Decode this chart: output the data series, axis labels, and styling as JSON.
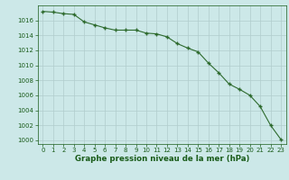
{
  "x": [
    0,
    1,
    2,
    3,
    4,
    5,
    6,
    7,
    8,
    9,
    10,
    11,
    12,
    13,
    14,
    15,
    16,
    17,
    18,
    19,
    20,
    21,
    22,
    23
  ],
  "y": [
    1017.2,
    1017.1,
    1016.9,
    1016.8,
    1015.8,
    1015.4,
    1015.0,
    1014.7,
    1014.7,
    1014.7,
    1014.3,
    1014.2,
    1013.8,
    1012.9,
    1012.3,
    1011.8,
    1010.3,
    1009.0,
    1007.5,
    1006.8,
    1006.0,
    1004.5,
    1002.0,
    1000.1
  ],
  "line_color": "#2d6a2d",
  "marker": "+",
  "bg_color": "#cce8e8",
  "grid_color": "#b0cccc",
  "xlabel": "Graphe pression niveau de la mer (hPa)",
  "xlabel_color": "#1a5c1a",
  "tick_color": "#1a5c1a",
  "ylim": [
    999.5,
    1018.0
  ],
  "xlim": [
    -0.5,
    23.5
  ],
  "yticks": [
    1000,
    1002,
    1004,
    1006,
    1008,
    1010,
    1012,
    1014,
    1016
  ],
  "xticks": [
    0,
    1,
    2,
    3,
    4,
    5,
    6,
    7,
    8,
    9,
    10,
    11,
    12,
    13,
    14,
    15,
    16,
    17,
    18,
    19,
    20,
    21,
    22,
    23
  ],
  "tick_fontsize": 5.0,
  "xlabel_fontsize": 6.2,
  "linewidth": 0.8,
  "markersize": 3.5,
  "markeredgewidth": 1.0
}
